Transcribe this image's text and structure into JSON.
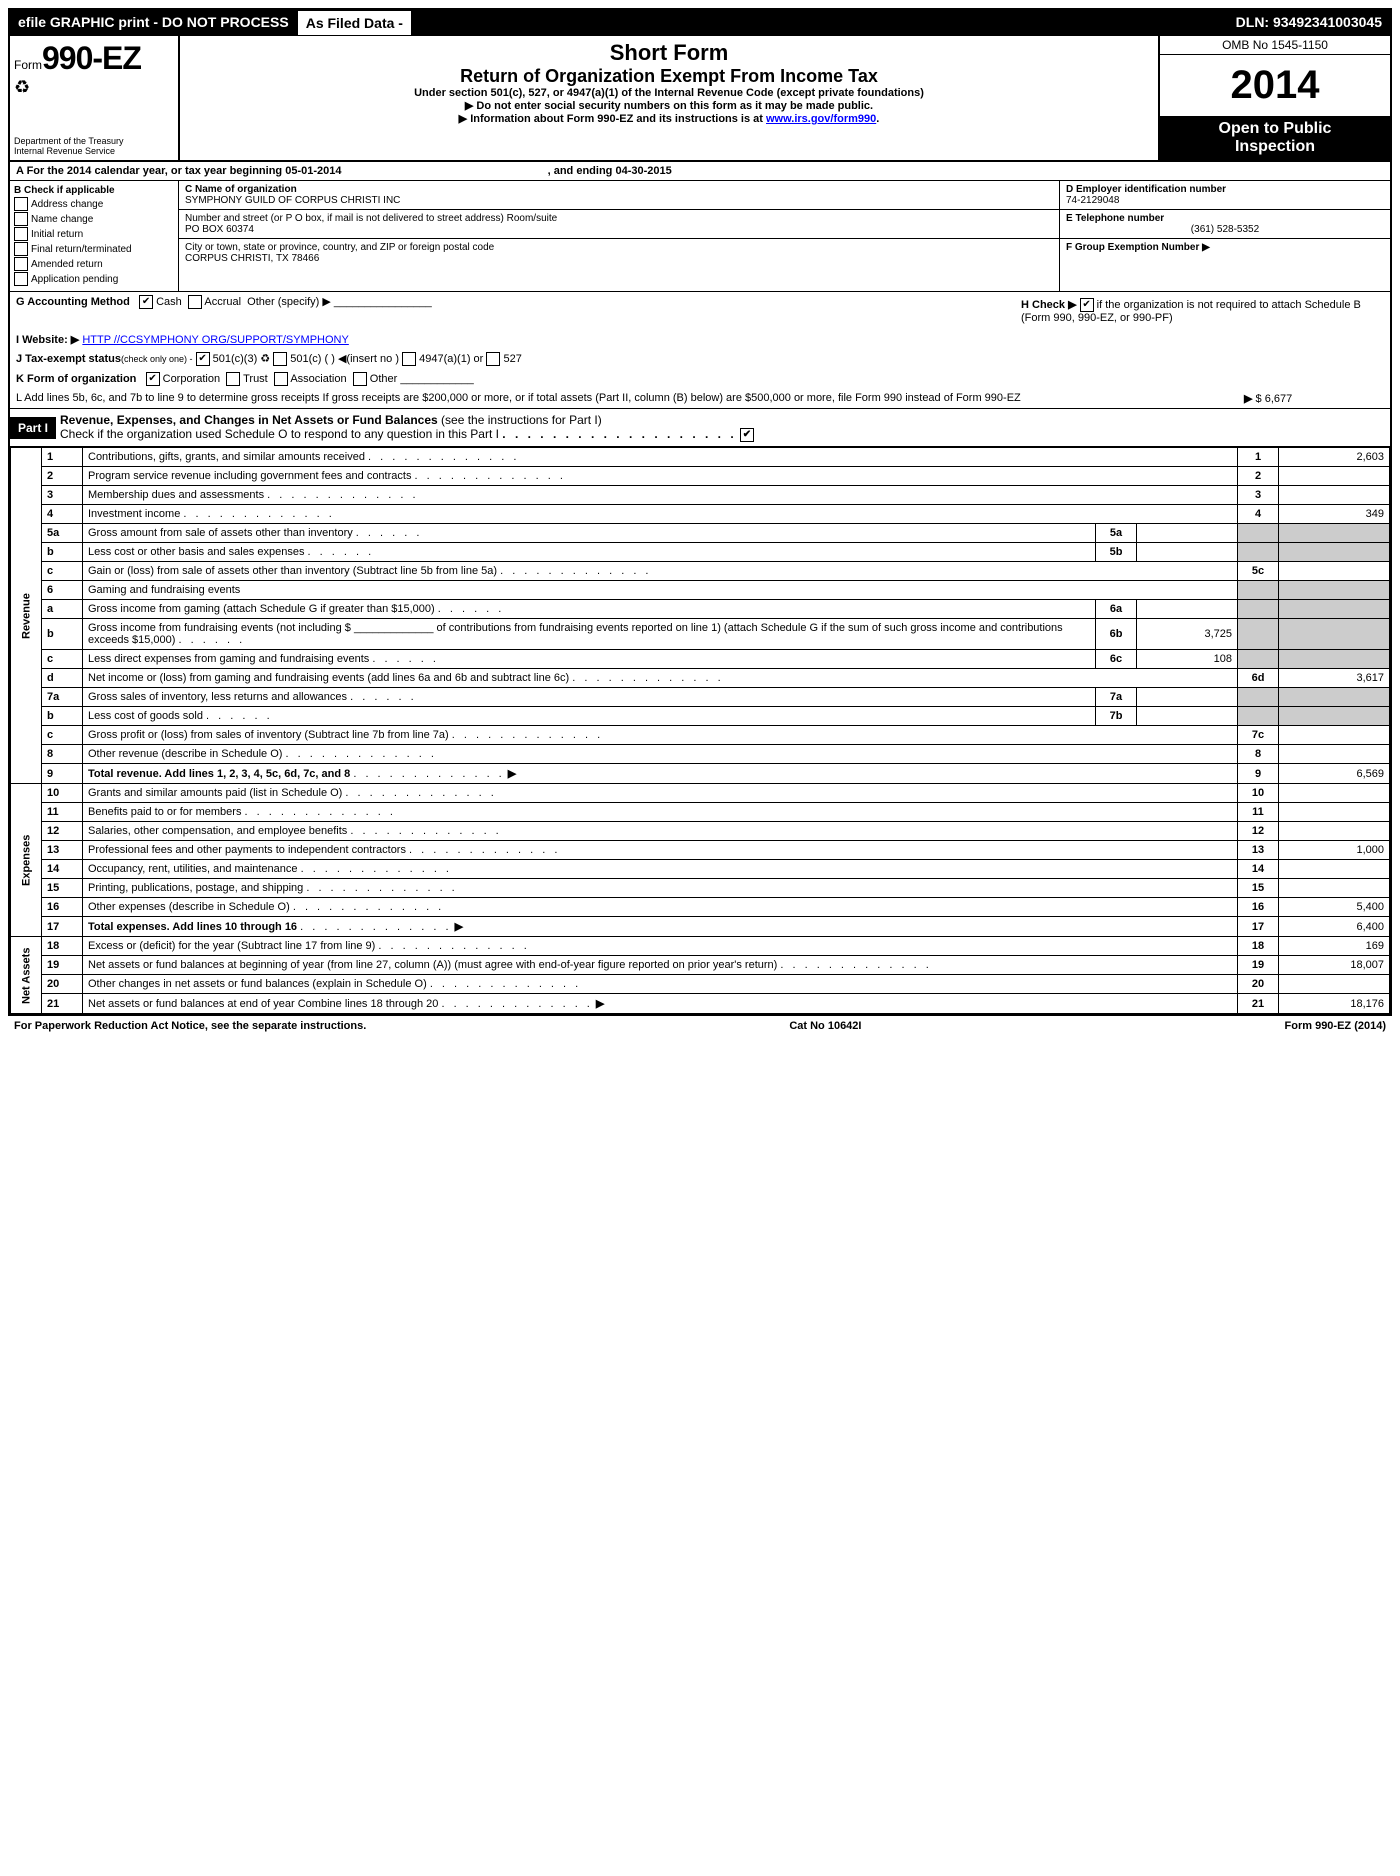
{
  "topbar": {
    "left": "efile GRAPHIC print - DO NOT PROCESS",
    "mid": "As Filed Data -",
    "right": "DLN: 93492341003045"
  },
  "header": {
    "form_prefix": "Form",
    "form_no": "990-EZ",
    "dept1": "Department of the Treasury",
    "dept2": "Internal Revenue Service",
    "short": "Short Form",
    "title": "Return of Organization Exempt From Income Tax",
    "sub": "Under section 501(c), 527, or 4947(a)(1) of the Internal Revenue Code (except private foundations)",
    "note1": "▶ Do not enter social security numbers on this form as it may be made public.",
    "note2_pre": "▶ Information about Form 990-EZ and its instructions is at ",
    "note2_link": "www.irs.gov/form990",
    "omb": "OMB No 1545-1150",
    "year": "2014",
    "inspect1": "Open to Public",
    "inspect2": "Inspection"
  },
  "rowA": {
    "label_pre": "A  For the 2014 calendar year, or tax year beginning ",
    "begin": "05-01-2014",
    "label_mid": " , and ending ",
    "end": "04-30-2015"
  },
  "colB": {
    "title": "B  Check if applicable",
    "items": [
      "Address change",
      "Name change",
      "Initial return",
      "Final return/terminated",
      "Amended return",
      "Application pending"
    ]
  },
  "colC": {
    "name_label": "C Name of organization",
    "name": "SYMPHONY GUILD OF CORPUS CHRISTI INC",
    "street_label": "Number and street (or P  O  box, if mail is not delivered to street address) Room/suite",
    "street": "PO BOX 60374",
    "city_label": "City or town, state or province, country, and ZIP or foreign postal code",
    "city": "CORPUS CHRISTI, TX  78466"
  },
  "colDEF": {
    "d_label": "D Employer identification number",
    "d_val": "74-2129048",
    "e_label": "E Telephone number",
    "e_val": "(361) 528-5352",
    "f_label": "F Group Exemption Number  ▶"
  },
  "lineG": {
    "label": "G Accounting Method",
    "opt1": "Cash",
    "opt2": "Accrual",
    "opt3": "Other (specify) ▶"
  },
  "lineH": {
    "text": "H  Check ▶",
    "chk": "✔",
    "rest": " if the organization is not required to attach Schedule B (Form 990, 990-EZ, or 990-PF)"
  },
  "lineI": {
    "label": "I Website: ▶",
    "val": "HTTP //CCSYMPHONY ORG/SUPPORT/SYMPHONY"
  },
  "lineJ": {
    "label": "J Tax-exempt status",
    "rest": "(check only one) -",
    "o1": "501(c)(3)",
    "o2": "501(c) (   ) ◀(insert no )",
    "o3": "4947(a)(1) or",
    "o4": "527"
  },
  "lineK": {
    "label": "K Form of organization",
    "o1": "Corporation",
    "o2": "Trust",
    "o3": "Association",
    "o4": "Other"
  },
  "lineL": {
    "text": "L Add lines 5b, 6c, and 7b to line 9 to determine gross receipts  If gross receipts are $200,000 or more, or if total assets (Part II, column (B) below) are $500,000 or more, file Form 990 instead of Form 990-EZ",
    "arrow": "▶",
    "val": "$ 6,677"
  },
  "part1": {
    "badge": "Part I",
    "title": "Revenue, Expenses, and Changes in Net Assets or Fund Balances",
    "subtitle": "(see the instructions for Part I)",
    "check_text": "Check if the organization used Schedule O to respond to any question in this Part I",
    "check_mark": "✔"
  },
  "sections": {
    "revenue": "Revenue",
    "expenses": "Expenses",
    "netassets": "Net Assets"
  },
  "rows": [
    {
      "n": "1",
      "d": "Contributions, gifts, grants, and similar amounts received",
      "rn": "1",
      "rv": "2,603"
    },
    {
      "n": "2",
      "d": "Program service revenue including government fees and contracts",
      "rn": "2",
      "rv": ""
    },
    {
      "n": "3",
      "d": "Membership dues and assessments",
      "rn": "3",
      "rv": ""
    },
    {
      "n": "4",
      "d": "Investment income",
      "rn": "4",
      "rv": "349"
    },
    {
      "n": "5a",
      "d": "Gross amount from sale of assets other than inventory",
      "mn": "5a",
      "mv": "",
      "shade": true
    },
    {
      "n": "b",
      "d": "Less  cost or other basis and sales expenses",
      "mn": "5b",
      "mv": "",
      "shade": true
    },
    {
      "n": "c",
      "d": "Gain or (loss) from sale of assets other than inventory (Subtract line 5b from line 5a)",
      "rn": "5c",
      "rv": ""
    },
    {
      "n": "6",
      "d": "Gaming and fundraising events",
      "shade_only": true
    },
    {
      "n": "a",
      "d": "Gross income from gaming (attach Schedule G if greater than $15,000)",
      "mn": "6a",
      "mv": "",
      "shade": true
    },
    {
      "n": "b",
      "d": "Gross income from fundraising events (not including $ _____________ of contributions from fundraising events reported on line 1) (attach Schedule G if the sum of such gross income and contributions exceeds $15,000)",
      "mn": "6b",
      "mv": "3,725",
      "shade": true
    },
    {
      "n": "c",
      "d": "Less  direct expenses from gaming and fundraising events",
      "mn": "6c",
      "mv": "108",
      "shade": true
    },
    {
      "n": "d",
      "d": "Net income or (loss) from gaming and fundraising events (add lines 6a and 6b and subtract line 6c)",
      "rn": "6d",
      "rv": "3,617"
    },
    {
      "n": "7a",
      "d": "Gross sales of inventory, less returns and allowances",
      "mn": "7a",
      "mv": "",
      "shade": true
    },
    {
      "n": "b",
      "d": "Less  cost of goods sold",
      "mn": "7b",
      "mv": "",
      "shade": true
    },
    {
      "n": "c",
      "d": "Gross profit or (loss) from sales of inventory (Subtract line 7b from line 7a)",
      "rn": "7c",
      "rv": ""
    },
    {
      "n": "8",
      "d": "Other revenue (describe in Schedule O)",
      "rn": "8",
      "rv": ""
    },
    {
      "n": "9",
      "d": "Total revenue. Add lines 1, 2, 3, 4, 5c, 6d, 7c, and 8",
      "bold": true,
      "arrow": true,
      "rn": "9",
      "rv": "6,569"
    }
  ],
  "exp_rows": [
    {
      "n": "10",
      "d": "Grants and similar amounts paid (list in Schedule O)",
      "rn": "10",
      "rv": ""
    },
    {
      "n": "11",
      "d": "Benefits paid to or for members",
      "rn": "11",
      "rv": ""
    },
    {
      "n": "12",
      "d": "Salaries, other compensation, and employee benefits",
      "rn": "12",
      "rv": ""
    },
    {
      "n": "13",
      "d": "Professional fees and other payments to independent contractors",
      "rn": "13",
      "rv": "1,000"
    },
    {
      "n": "14",
      "d": "Occupancy, rent, utilities, and maintenance",
      "rn": "14",
      "rv": ""
    },
    {
      "n": "15",
      "d": "Printing, publications, postage, and shipping",
      "rn": "15",
      "rv": ""
    },
    {
      "n": "16",
      "d": "Other expenses (describe in Schedule O)",
      "rn": "16",
      "rv": "5,400"
    },
    {
      "n": "17",
      "d": "Total expenses. Add lines 10 through 16",
      "bold": true,
      "arrow": true,
      "rn": "17",
      "rv": "6,400"
    }
  ],
  "na_rows": [
    {
      "n": "18",
      "d": "Excess or (deficit) for the year (Subtract line 17 from line 9)",
      "rn": "18",
      "rv": "169"
    },
    {
      "n": "19",
      "d": "Net assets or fund balances at beginning of year (from line 27, column (A)) (must agree with end-of-year figure reported on prior year's return)",
      "rn": "19",
      "rv": "18,007"
    },
    {
      "n": "20",
      "d": "Other changes in net assets or fund balances (explain in Schedule O)",
      "rn": "20",
      "rv": ""
    },
    {
      "n": "21",
      "d": "Net assets or fund balances at end of year  Combine lines 18 through 20",
      "arrow": true,
      "rn": "21",
      "rv": "18,176"
    }
  ],
  "footer": {
    "left": "For Paperwork Reduction Act Notice, see the separate instructions.",
    "mid": "Cat No  10642I",
    "right": "Form 990-EZ (2014)"
  }
}
